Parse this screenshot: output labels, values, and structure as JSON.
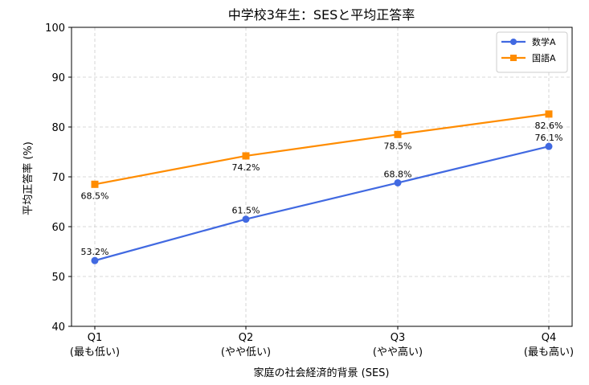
{
  "chart_data": {
    "type": "line",
    "title": "中学校3年生：SESと平均正答率",
    "xlabel": "家庭の社会経済的背景 (SES)",
    "ylabel": "平均正答率 (%)",
    "categories": [
      [
        "Q1",
        "(最も低い)"
      ],
      [
        "Q2",
        "(やや低い)"
      ],
      [
        "Q3",
        "(やや高い)"
      ],
      [
        "Q4",
        "(最も高い)"
      ]
    ],
    "ylim": [
      40,
      100
    ],
    "yticks": [
      40,
      50,
      60,
      70,
      80,
      90,
      100
    ],
    "grid": true,
    "legend_position": "top-right",
    "series": [
      {
        "name": "数学A",
        "values": [
          53.2,
          61.5,
          68.8,
          76.1
        ],
        "labels": [
          "53.2%",
          "61.5%",
          "68.8%",
          "76.1%"
        ],
        "color": "#4169e1",
        "marker": "circle",
        "label_side": "above"
      },
      {
        "name": "国語A",
        "values": [
          68.5,
          74.2,
          78.5,
          82.6
        ],
        "labels": [
          "68.5%",
          "74.2%",
          "78.5%",
          "82.6%"
        ],
        "color": "#ff8c00",
        "marker": "square",
        "label_side": "below"
      }
    ]
  }
}
